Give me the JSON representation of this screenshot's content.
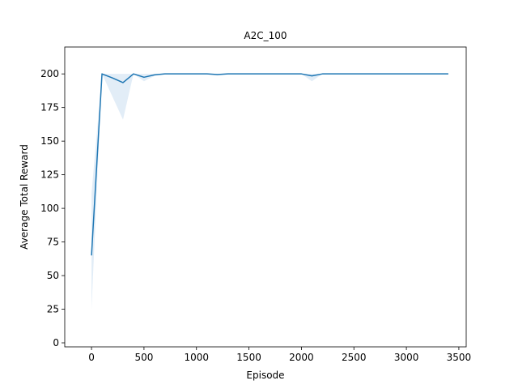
{
  "chart_data": {
    "type": "line",
    "title": "A2C_100",
    "xlabel": "Episode",
    "ylabel": "Average Total Reward",
    "xlim": [
      -255,
      3570
    ],
    "ylim": [
      -3,
      220
    ],
    "xticks": [
      0,
      500,
      1000,
      1500,
      2000,
      2500,
      3000,
      3500
    ],
    "yticks": [
      0,
      25,
      50,
      75,
      100,
      125,
      150,
      175,
      200
    ],
    "grid": false,
    "series": [
      {
        "color": "#1f77b4",
        "x": [
          0,
          100,
          200,
          300,
          400,
          500,
          600,
          700,
          800,
          900,
          1000,
          1100,
          1200,
          1300,
          1400,
          1500,
          1600,
          1700,
          1800,
          1900,
          2000,
          2100,
          2200,
          2300,
          2400,
          2500,
          2600,
          2700,
          2800,
          2900,
          3000,
          3100,
          3200,
          3300,
          3400
        ],
        "y": [
          65,
          200,
          197,
          193.5,
          200,
          197.5,
          199.3,
          200,
          200,
          200,
          200,
          200,
          199.5,
          200,
          200,
          200,
          200,
          200,
          200,
          200,
          200,
          198.5,
          200,
          200,
          200,
          200,
          200,
          200,
          200,
          200,
          200,
          200,
          200,
          200,
          200
        ],
        "band_low": [
          25,
          200,
          183,
          166,
          200,
          194.5,
          198.5,
          200,
          200,
          200,
          200,
          200,
          199,
          200,
          200,
          200,
          200,
          200,
          200,
          200,
          200,
          194.5,
          200,
          200,
          200,
          200,
          200,
          200,
          200,
          200,
          200,
          200,
          200,
          200,
          200
        ],
        "band_high": [
          111,
          200,
          200,
          200,
          200,
          200,
          200,
          200,
          200,
          200,
          200,
          200,
          200,
          200,
          200,
          200,
          200,
          200,
          200,
          200,
          200,
          200,
          200,
          200,
          200,
          200,
          200,
          200,
          200,
          200,
          200,
          200,
          200,
          200,
          200
        ],
        "band_color": "#c6dcef"
      }
    ]
  }
}
